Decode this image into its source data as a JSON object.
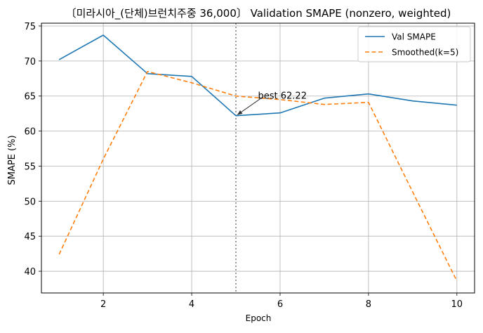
{
  "chart_data": {
    "type": "line",
    "title": "〔미라시아_(단체)브런치주중 36,000〕 Validation SMAPE (nonzero, weighted)",
    "xlabel": "Epoch",
    "ylabel": "SMAPE (%)",
    "xlim": [
      0.6,
      10.4
    ],
    "ylim": [
      36.9,
      75.4
    ],
    "xticks": [
      2,
      4,
      6,
      8,
      10
    ],
    "yticks": [
      40,
      45,
      50,
      55,
      60,
      65,
      70,
      75
    ],
    "grid": true,
    "legend_position": "top-right",
    "series": [
      {
        "name": "Val SMAPE",
        "style": "solid",
        "color": "#1f77b4",
        "x": [
          1,
          2,
          3,
          4,
          5,
          6,
          7,
          8,
          9,
          10
        ],
        "y": [
          70.2,
          73.7,
          68.2,
          67.8,
          62.2,
          62.6,
          64.7,
          65.3,
          64.3,
          63.7
        ]
      },
      {
        "name": "Smoothed(k=5)",
        "style": "dashed",
        "color": "#ff7f0e",
        "x": [
          1,
          2,
          3,
          4,
          5,
          6,
          7,
          8,
          9,
          10
        ],
        "y": [
          42.4,
          56.0,
          68.5,
          66.9,
          65.0,
          64.5,
          63.8,
          64.1,
          51.3,
          38.6
        ]
      }
    ],
    "vline": {
      "x": 5,
      "style": "dotted",
      "color": "#808080"
    },
    "annotation": {
      "text": "best 62.22",
      "x": 5,
      "y": 62.22,
      "text_x": 5.5,
      "text_y": 64.6
    }
  }
}
